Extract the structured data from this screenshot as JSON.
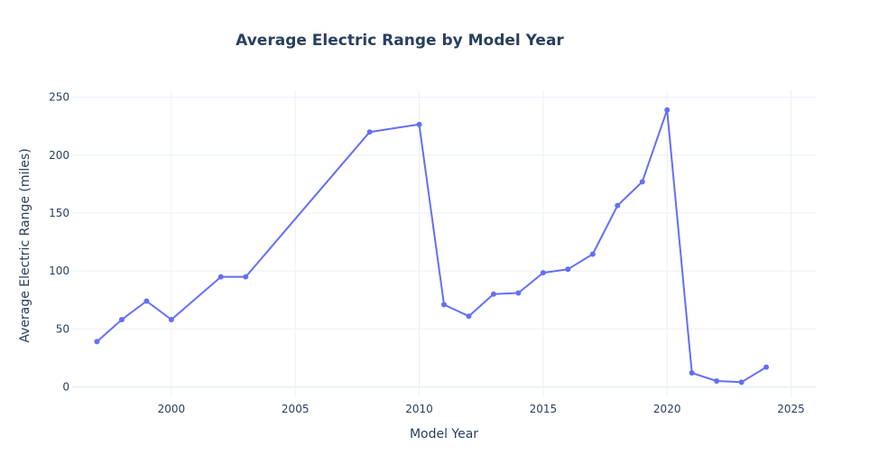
{
  "chart_data": {
    "type": "line",
    "title": "Average Electric Range by Model Year",
    "xlabel": "Model Year",
    "ylabel": "Average Electric Range (miles)",
    "x_ticks": [
      2000,
      2005,
      2010,
      2015,
      2020,
      2025
    ],
    "y_ticks": [
      0,
      50,
      100,
      150,
      200,
      250
    ],
    "xlim": [
      1996,
      2026
    ],
    "ylim": [
      -9,
      256
    ],
    "grid": true,
    "mode": "lines+markers",
    "series": [
      {
        "color": "#636efa",
        "x": [
          1997,
          1998,
          1999,
          2000,
          2002,
          2003,
          2008,
          2010,
          2011,
          2012,
          2013,
          2014,
          2015,
          2016,
          2017,
          2018,
          2019,
          2020,
          2021,
          2022,
          2023,
          2024
        ],
        "y": [
          39,
          58,
          74,
          58,
          95,
          95,
          220,
          226.5,
          71,
          61,
          80,
          81,
          98.5,
          101.5,
          114.5,
          156.5,
          177,
          239,
          12,
          5,
          4,
          17
        ]
      }
    ]
  }
}
